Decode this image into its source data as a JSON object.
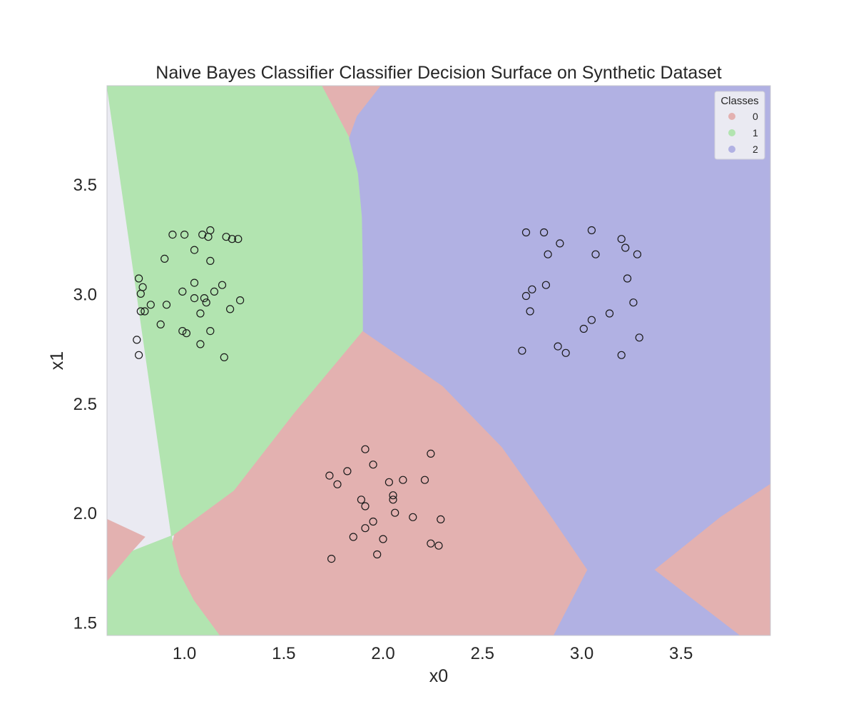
{
  "chart_data": {
    "type": "scatter",
    "title": "Naive Bayes Classifier Classifier Decision Surface on Synthetic Dataset",
    "xlabel": "x0",
    "ylabel": "x1",
    "xlim": [
      0.61,
      3.95
    ],
    "ylim": [
      1.44,
      3.95
    ],
    "xticks": [
      1.0,
      1.5,
      2.0,
      2.5,
      3.0,
      3.5
    ],
    "yticks": [
      1.5,
      2.0,
      2.5,
      3.0,
      3.5
    ],
    "grid": false,
    "legend": {
      "title": "Classes",
      "placement": "top-right",
      "entries": [
        {
          "label": "0",
          "color": "#e3b1b0"
        },
        {
          "label": "1",
          "color": "#b2e4b0"
        },
        {
          "label": "2",
          "color": "#b1b1e3"
        }
      ]
    },
    "regions": [
      {
        "class": "0",
        "color": "#e3b1b0",
        "polygon": [
          [
            1.69,
            3.95
          ],
          [
            1.99,
            3.95
          ],
          [
            1.87,
            3.81
          ],
          [
            1.83,
            3.71
          ]
        ]
      },
      {
        "class": "1",
        "color": "#b2e4b0",
        "polygon": [
          [
            0.61,
            3.95
          ],
          [
            1.69,
            3.95
          ],
          [
            1.83,
            3.71
          ],
          [
            1.875,
            3.55
          ],
          [
            1.895,
            3.35
          ],
          [
            1.9,
            3.1
          ],
          [
            1.9,
            2.83
          ],
          [
            1.55,
            2.45
          ],
          [
            1.25,
            2.1
          ],
          [
            0.95,
            1.9
          ],
          [
            0.61,
            1.78
          ],
          [
            0.61,
            1.73
          ],
          [
            0.61,
            1.69
          ],
          [
            0.61,
            1.44
          ],
          [
            1.18,
            1.44
          ],
          [
            1.05,
            1.6
          ],
          [
            0.98,
            1.72
          ],
          [
            0.94,
            1.86
          ]
        ]
      },
      {
        "class": "0",
        "color": "#e3b1b0",
        "polygon": [
          [
            0.61,
            1.97
          ],
          [
            0.61,
            1.69
          ],
          [
            0.73,
            1.82
          ],
          [
            0.8,
            1.89
          ]
        ]
      },
      {
        "class": "0",
        "color": "#e3b1b0",
        "polygon": [
          [
            1.9,
            2.83
          ],
          [
            2.3,
            2.58
          ],
          [
            2.6,
            2.3
          ],
          [
            2.85,
            1.98
          ],
          [
            3.03,
            1.74
          ],
          [
            2.86,
            1.44
          ],
          [
            1.18,
            1.44
          ],
          [
            1.05,
            1.6
          ],
          [
            0.98,
            1.72
          ],
          [
            0.94,
            1.86
          ],
          [
            0.95,
            1.9
          ],
          [
            1.25,
            2.1
          ],
          [
            1.55,
            2.45
          ]
        ]
      },
      {
        "class": "2",
        "color": "#b1b1e3",
        "polygon": [
          [
            1.99,
            3.95
          ],
          [
            3.95,
            3.95
          ],
          [
            3.95,
            2.13
          ],
          [
            3.7,
            1.98
          ],
          [
            3.37,
            1.74
          ],
          [
            3.8,
            1.44
          ],
          [
            2.86,
            1.44
          ],
          [
            3.03,
            1.74
          ],
          [
            2.85,
            1.98
          ],
          [
            2.6,
            2.3
          ],
          [
            2.3,
            2.58
          ],
          [
            1.9,
            2.83
          ],
          [
            1.9,
            3.1
          ],
          [
            1.895,
            3.35
          ],
          [
            1.875,
            3.55
          ],
          [
            1.83,
            3.71
          ],
          [
            1.87,
            3.81
          ]
        ]
      },
      {
        "class": "0",
        "color": "#e3b1b0",
        "polygon": [
          [
            3.95,
            2.13
          ],
          [
            3.95,
            1.44
          ],
          [
            3.8,
            1.44
          ],
          [
            3.37,
            1.74
          ],
          [
            3.7,
            1.98
          ]
        ]
      }
    ],
    "series": [
      {
        "name": "0",
        "points": [
          [
            1.91,
            2.29
          ],
          [
            2.24,
            2.27
          ],
          [
            1.95,
            2.22
          ],
          [
            1.82,
            2.19
          ],
          [
            1.73,
            2.17
          ],
          [
            2.03,
            2.14
          ],
          [
            2.1,
            2.15
          ],
          [
            2.21,
            2.15
          ],
          [
            1.77,
            2.13
          ],
          [
            2.05,
            2.08
          ],
          [
            1.89,
            2.06
          ],
          [
            2.05,
            2.06
          ],
          [
            1.91,
            2.03
          ],
          [
            2.06,
            2.0
          ],
          [
            2.15,
            1.98
          ],
          [
            2.29,
            1.97
          ],
          [
            1.95,
            1.96
          ],
          [
            1.91,
            1.93
          ],
          [
            1.85,
            1.89
          ],
          [
            2.0,
            1.88
          ],
          [
            2.24,
            1.86
          ],
          [
            2.28,
            1.85
          ],
          [
            1.97,
            1.81
          ],
          [
            1.74,
            1.79
          ]
        ]
      },
      {
        "name": "1",
        "points": [
          [
            1.13,
            3.29
          ],
          [
            0.94,
            3.27
          ],
          [
            1.0,
            3.27
          ],
          [
            1.09,
            3.27
          ],
          [
            1.12,
            3.26
          ],
          [
            1.21,
            3.26
          ],
          [
            1.24,
            3.25
          ],
          [
            1.27,
            3.25
          ],
          [
            1.05,
            3.2
          ],
          [
            0.9,
            3.16
          ],
          [
            1.13,
            3.15
          ],
          [
            0.77,
            3.07
          ],
          [
            1.05,
            3.05
          ],
          [
            1.19,
            3.04
          ],
          [
            0.79,
            3.03
          ],
          [
            0.99,
            3.01
          ],
          [
            1.15,
            3.01
          ],
          [
            0.78,
            3.0
          ],
          [
            1.1,
            2.98
          ],
          [
            1.05,
            2.98
          ],
          [
            1.28,
            2.97
          ],
          [
            1.11,
            2.96
          ],
          [
            0.83,
            2.95
          ],
          [
            0.91,
            2.95
          ],
          [
            1.23,
            2.93
          ],
          [
            0.78,
            2.92
          ],
          [
            0.8,
            2.92
          ],
          [
            1.08,
            2.91
          ],
          [
            0.88,
            2.86
          ],
          [
            0.99,
            2.83
          ],
          [
            1.13,
            2.83
          ],
          [
            1.01,
            2.82
          ],
          [
            0.76,
            2.79
          ],
          [
            1.08,
            2.77
          ],
          [
            0.77,
            2.72
          ],
          [
            1.2,
            2.71
          ]
        ]
      },
      {
        "name": "2",
        "points": [
          [
            3.05,
            3.29
          ],
          [
            2.81,
            3.28
          ],
          [
            2.72,
            3.28
          ],
          [
            3.2,
            3.25
          ],
          [
            2.89,
            3.23
          ],
          [
            3.22,
            3.21
          ],
          [
            3.07,
            3.18
          ],
          [
            2.83,
            3.18
          ],
          [
            3.28,
            3.18
          ],
          [
            3.23,
            3.07
          ],
          [
            2.82,
            3.04
          ],
          [
            2.75,
            3.02
          ],
          [
            2.72,
            2.99
          ],
          [
            3.26,
            2.96
          ],
          [
            2.74,
            2.92
          ],
          [
            3.14,
            2.91
          ],
          [
            3.05,
            2.88
          ],
          [
            3.01,
            2.84
          ],
          [
            3.29,
            2.8
          ],
          [
            2.88,
            2.76
          ],
          [
            2.7,
            2.74
          ],
          [
            2.92,
            2.73
          ],
          [
            3.2,
            2.72
          ]
        ]
      }
    ]
  }
}
